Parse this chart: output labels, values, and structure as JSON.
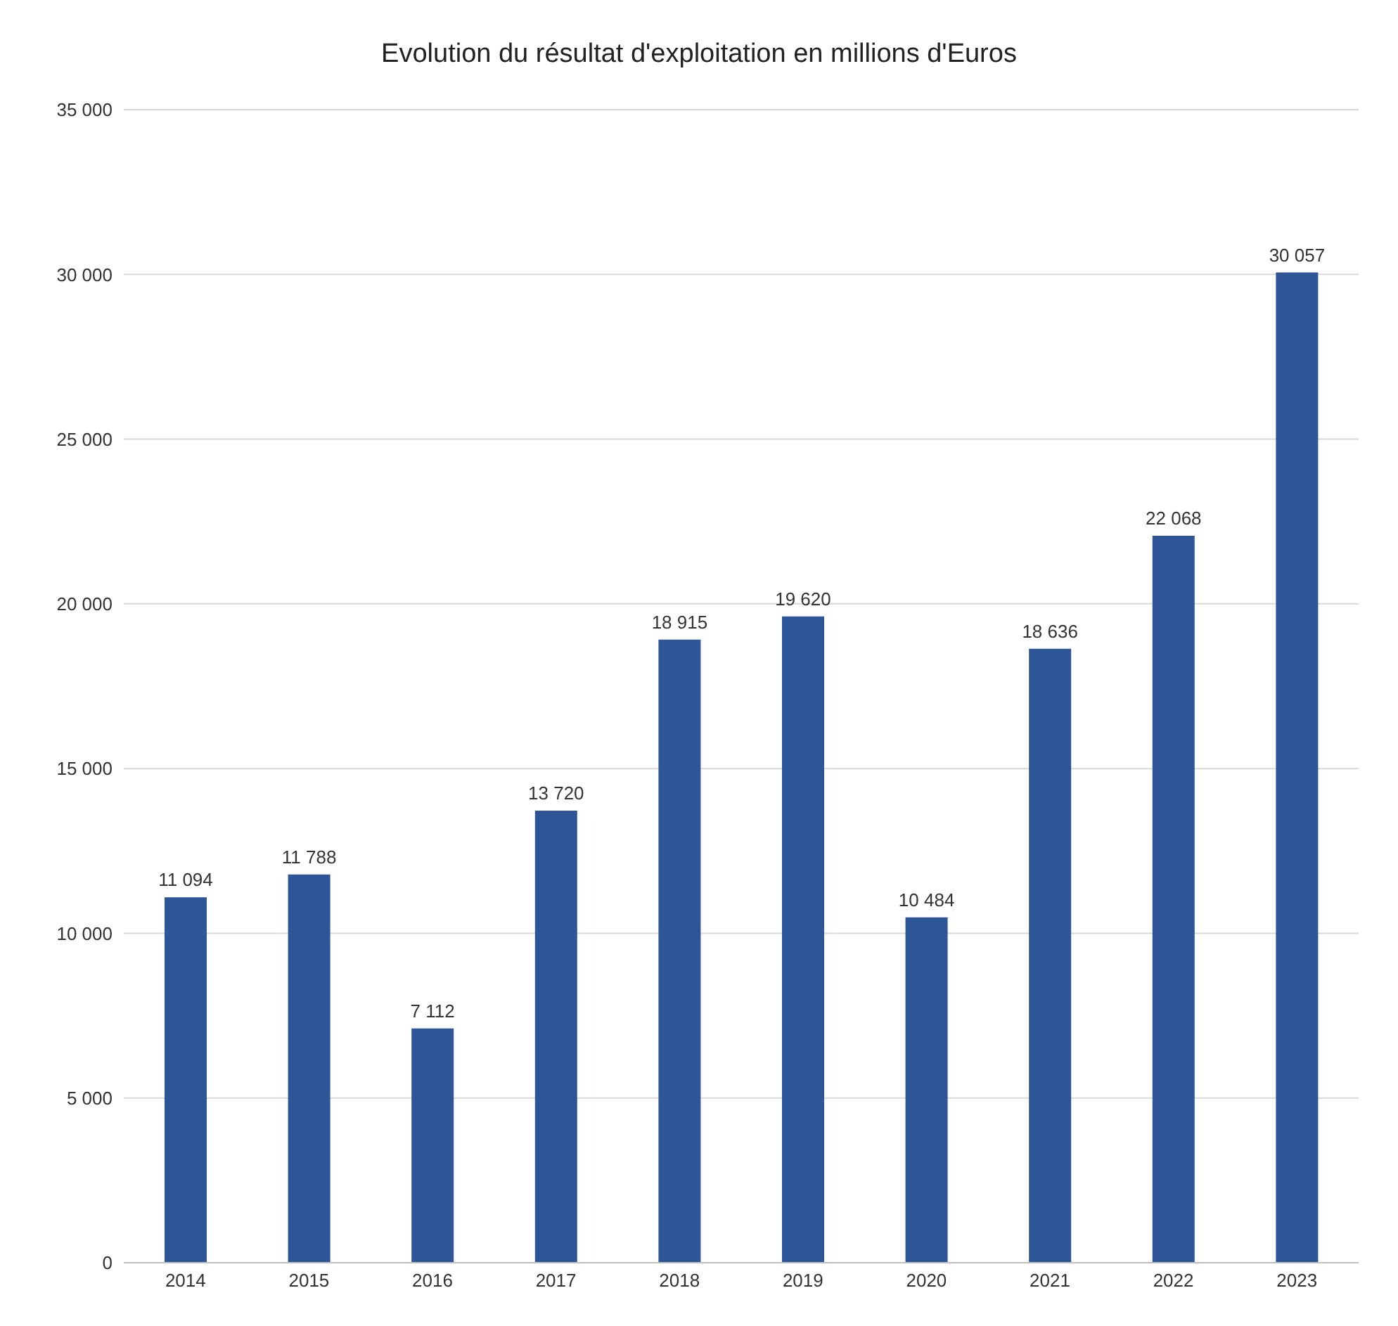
{
  "chart_data": {
    "type": "bar",
    "title": "Evolution du résultat d'exploitation en millions d'Euros",
    "categories": [
      "2014",
      "2015",
      "2016",
      "2017",
      "2018",
      "2019",
      "2020",
      "2021",
      "2022",
      "2023"
    ],
    "values": [
      11094,
      11788,
      7112,
      13720,
      18915,
      19620,
      10484,
      18636,
      22068,
      30057
    ],
    "value_labels": [
      "11 094",
      "11 788",
      "7 112",
      "13 720",
      "18 915",
      "19 620",
      "10 484",
      "18 636",
      "22 068",
      "30 057"
    ],
    "color": "#2e5597",
    "ylim": [
      0,
      35000
    ],
    "yticks": [
      {
        "value": 0,
        "label": "0"
      },
      {
        "value": 5000,
        "label": "5 000"
      },
      {
        "value": 10000,
        "label": "10 000"
      },
      {
        "value": 15000,
        "label": "15 000"
      },
      {
        "value": 20000,
        "label": "20 000"
      },
      {
        "value": 25000,
        "label": "25 000"
      },
      {
        "value": 30000,
        "label": "30 000"
      },
      {
        "value": 35000,
        "label": "35 000"
      }
    ],
    "grid": "y"
  }
}
